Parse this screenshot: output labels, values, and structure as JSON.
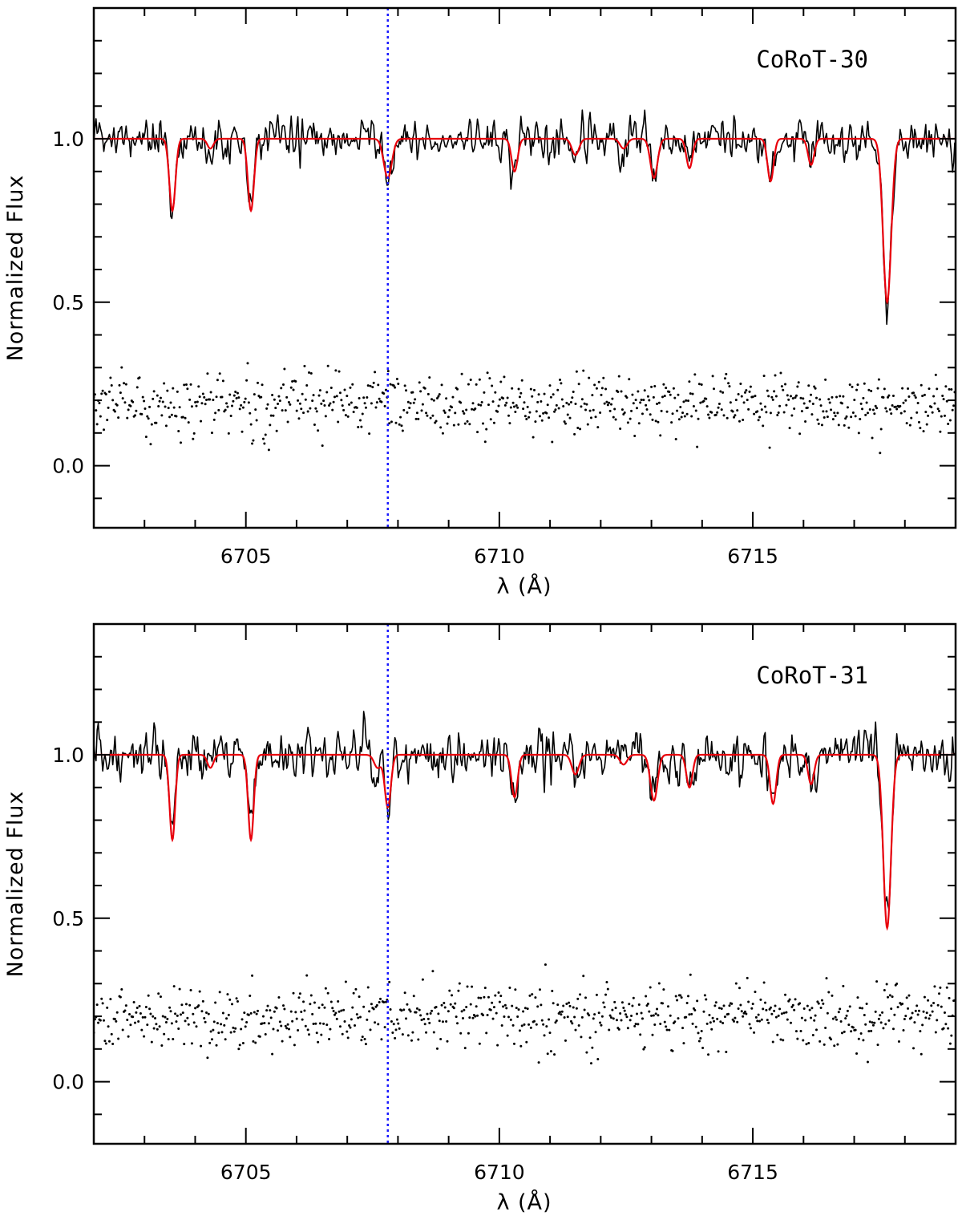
{
  "chart_data": [
    {
      "type": "line",
      "title": "CoRoT-30",
      "xlabel": "λ (Å)",
      "ylabel": "Normalized Flux",
      "xlim": [
        6702,
        6719
      ],
      "ylim": [
        -0.19,
        1.4
      ],
      "xticks": [
        6705,
        6710,
        6715
      ],
      "xtick_labels": [
        "6705",
        "6710",
        "6715"
      ],
      "yticks": [
        0.0,
        0.5,
        1.0
      ],
      "ytick_labels": [
        "0.0",
        "0.5",
        "1.0"
      ],
      "vline_x": 6707.8,
      "noise_sigma": 0.045,
      "residual_offset": 0.19,
      "residual_sigma": 0.045,
      "lines": [
        {
          "center": 6703.55,
          "depth": 0.22,
          "width": 0.06
        },
        {
          "center": 6704.3,
          "depth": 0.03,
          "width": 0.06
        },
        {
          "center": 6705.1,
          "depth": 0.22,
          "width": 0.06
        },
        {
          "center": 6707.8,
          "depth": 0.12,
          "width": 0.08
        },
        {
          "center": 6710.3,
          "depth": 0.1,
          "width": 0.06
        },
        {
          "center": 6711.5,
          "depth": 0.05,
          "width": 0.07
        },
        {
          "center": 6712.45,
          "depth": 0.03,
          "width": 0.07
        },
        {
          "center": 6713.05,
          "depth": 0.12,
          "width": 0.07
        },
        {
          "center": 6713.75,
          "depth": 0.09,
          "width": 0.06
        },
        {
          "center": 6715.35,
          "depth": 0.13,
          "width": 0.06
        },
        {
          "center": 6716.15,
          "depth": 0.08,
          "width": 0.06
        },
        {
          "center": 6717.65,
          "depth": 0.5,
          "width": 0.08
        }
      ]
    },
    {
      "type": "line",
      "title": "CoRoT-31",
      "xlabel": "λ (Å)",
      "ylabel": "Normalized Flux",
      "xlim": [
        6702,
        6719
      ],
      "ylim": [
        -0.19,
        1.4
      ],
      "xticks": [
        6705,
        6710,
        6715
      ],
      "xtick_labels": [
        "6705",
        "6710",
        "6715"
      ],
      "yticks": [
        0.0,
        0.5,
        1.0
      ],
      "ytick_labels": [
        "0.0",
        "0.5",
        "1.0"
      ],
      "vline_x": 6707.8,
      "noise_sigma": 0.05,
      "residual_offset": 0.2,
      "residual_sigma": 0.05,
      "lines": [
        {
          "center": 6703.55,
          "depth": 0.26,
          "width": 0.055
        },
        {
          "center": 6704.3,
          "depth": 0.04,
          "width": 0.06
        },
        {
          "center": 6705.1,
          "depth": 0.26,
          "width": 0.055
        },
        {
          "center": 6707.6,
          "depth": 0.04,
          "width": 0.07
        },
        {
          "center": 6707.8,
          "depth": 0.16,
          "width": 0.06
        },
        {
          "center": 6710.3,
          "depth": 0.13,
          "width": 0.06
        },
        {
          "center": 6711.5,
          "depth": 0.06,
          "width": 0.07
        },
        {
          "center": 6712.45,
          "depth": 0.03,
          "width": 0.07
        },
        {
          "center": 6713.05,
          "depth": 0.14,
          "width": 0.07
        },
        {
          "center": 6713.75,
          "depth": 0.1,
          "width": 0.06
        },
        {
          "center": 6715.4,
          "depth": 0.15,
          "width": 0.06
        },
        {
          "center": 6716.15,
          "depth": 0.09,
          "width": 0.06
        },
        {
          "center": 6717.65,
          "depth": 0.53,
          "width": 0.075
        }
      ]
    }
  ],
  "colors": {
    "observed": "#000000",
    "model": "#e8000b",
    "vline": "#1a1aff",
    "axes": "#000000"
  }
}
